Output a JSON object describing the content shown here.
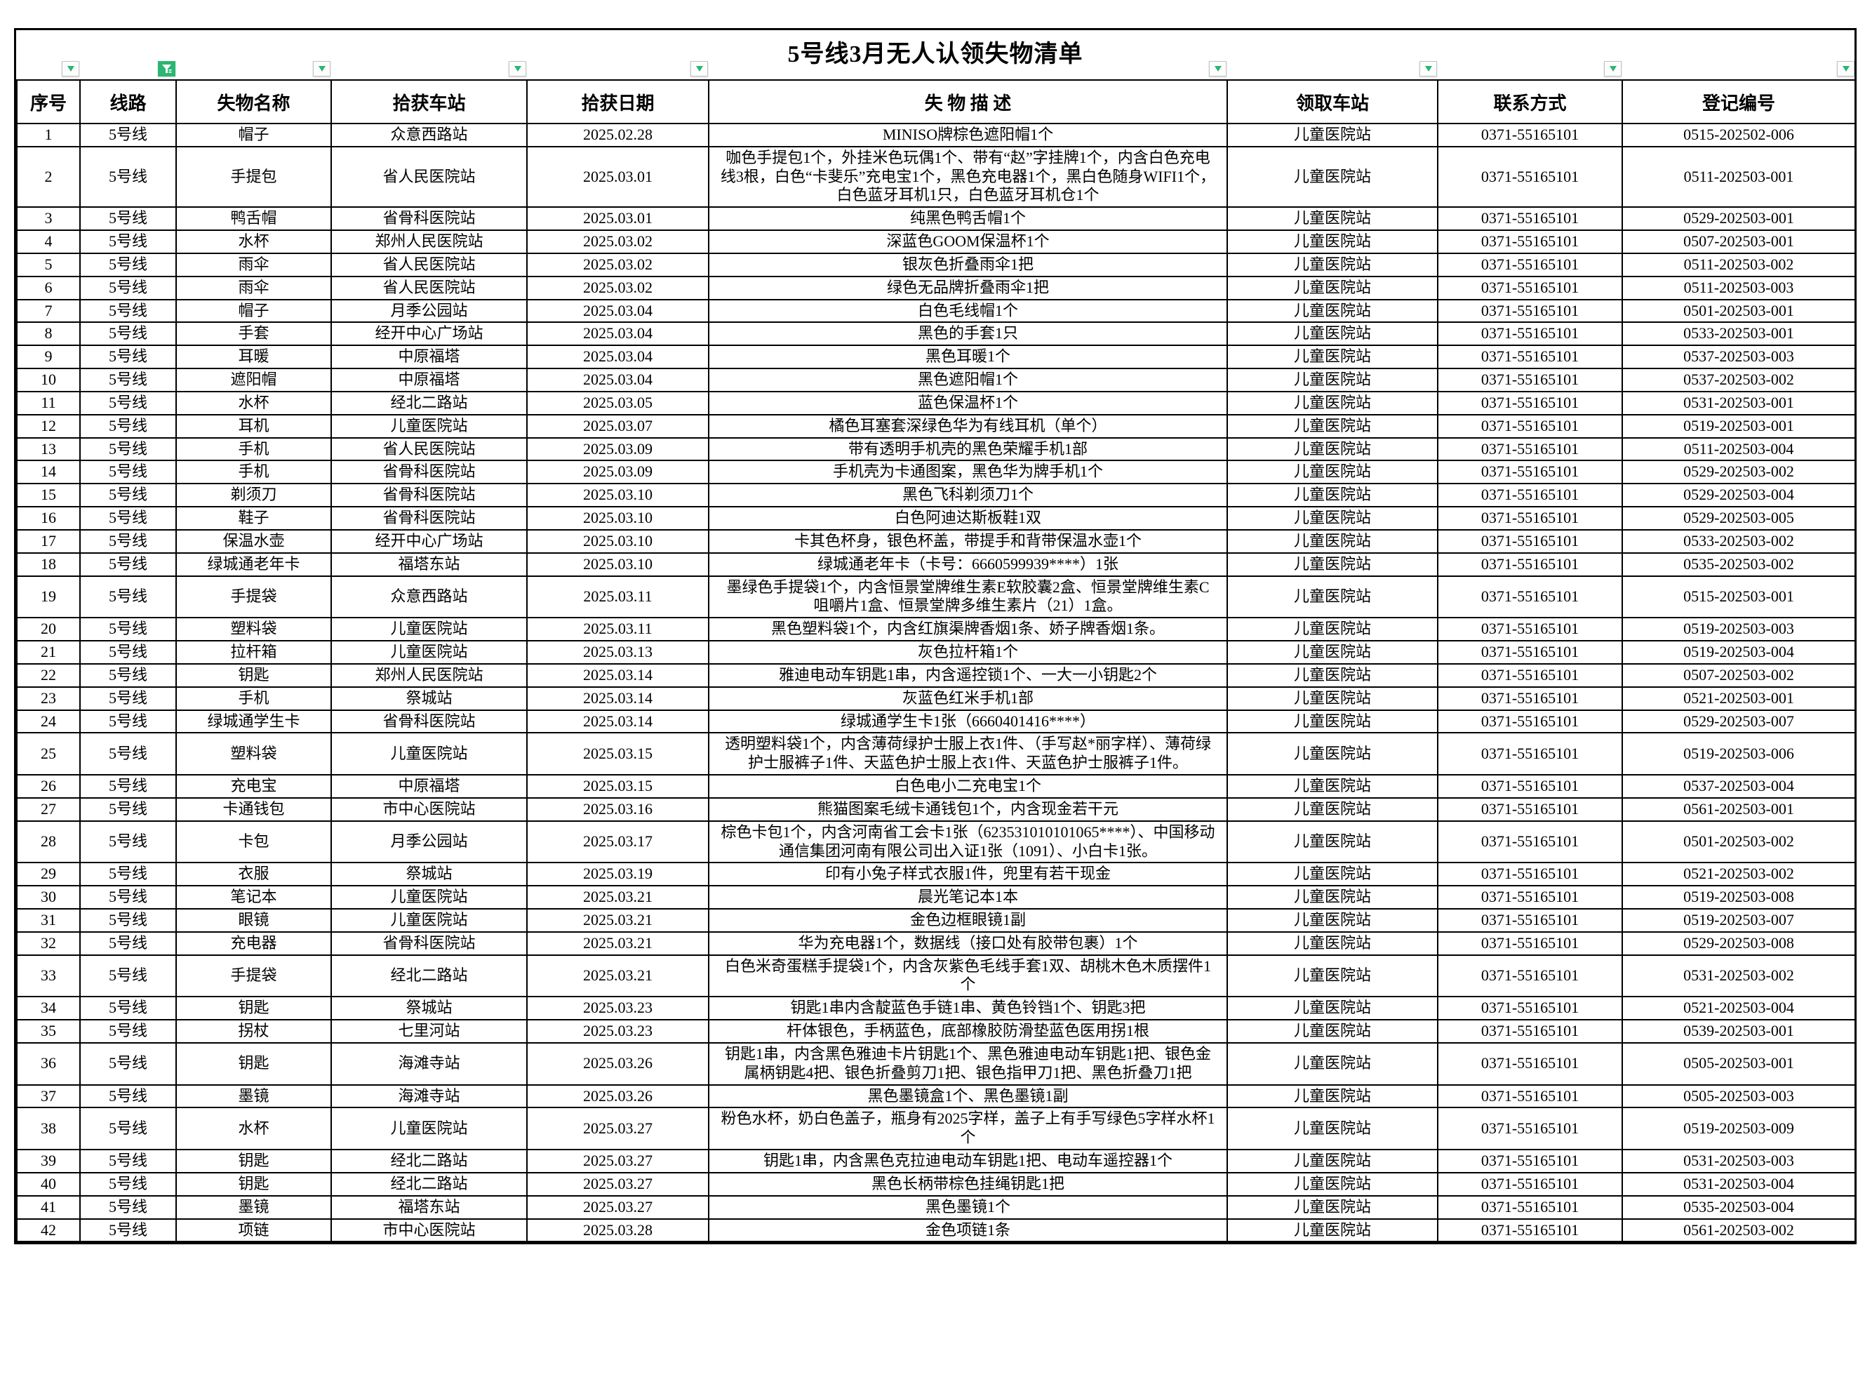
{
  "title": "5号线3月无人认领失物清单",
  "columns": [
    {
      "key": "seq",
      "label": "序号"
    },
    {
      "key": "line",
      "label": "线路"
    },
    {
      "key": "item-name",
      "label": "失物名称"
    },
    {
      "key": "found-station",
      "label": "拾获车站"
    },
    {
      "key": "found-date",
      "label": "拾获日期"
    },
    {
      "key": "description",
      "label": "失 物 描 述"
    },
    {
      "key": "claim-station",
      "label": "领取车站"
    },
    {
      "key": "contact",
      "label": "联系方式"
    },
    {
      "key": "reg-no",
      "label": "登记编号"
    }
  ],
  "filters": {
    "accent_color": "#2bb673",
    "active_column_key": "line",
    "inactive_icon": "filter-dropdown-icon",
    "active_icon": "filter-funnel-icon"
  },
  "rows": [
    [
      "1",
      "5号线",
      "帽子",
      "众意西路站",
      "2025.02.28",
      "MINISO牌棕色遮阳帽1个",
      "儿童医院站",
      "0371-55165101",
      "0515-202502-006"
    ],
    [
      "2",
      "5号线",
      "手提包",
      "省人民医院站",
      "2025.03.01",
      "咖色手提包1个，外挂米色玩偶1个、带有“赵”字挂牌1个，内含白色充电线3根，白色“卡斐乐”充电宝1个，黑色充电器1个，黑白色随身WIFI1个，白色蓝牙耳机1只，白色蓝牙耳机仓1个",
      "儿童医院站",
      "0371-55165101",
      "0511-202503-001"
    ],
    [
      "3",
      "5号线",
      "鸭舌帽",
      "省骨科医院站",
      "2025.03.01",
      "纯黑色鸭舌帽1个",
      "儿童医院站",
      "0371-55165101",
      "0529-202503-001"
    ],
    [
      "4",
      "5号线",
      "水杯",
      "郑州人民医院站",
      "2025.03.02",
      "深蓝色GOOM保温杯1个",
      "儿童医院站",
      "0371-55165101",
      "0507-202503-001"
    ],
    [
      "5",
      "5号线",
      "雨伞",
      "省人民医院站",
      "2025.03.02",
      "银灰色折叠雨伞1把",
      "儿童医院站",
      "0371-55165101",
      "0511-202503-002"
    ],
    [
      "6",
      "5号线",
      "雨伞",
      "省人民医院站",
      "2025.03.02",
      "绿色无品牌折叠雨伞1把",
      "儿童医院站",
      "0371-55165101",
      "0511-202503-003"
    ],
    [
      "7",
      "5号线",
      "帽子",
      "月季公园站",
      "2025.03.04",
      "白色毛线帽1个",
      "儿童医院站",
      "0371-55165101",
      "0501-202503-001"
    ],
    [
      "8",
      "5号线",
      "手套",
      "经开中心广场站",
      "2025.03.04",
      "黑色的手套1只",
      "儿童医院站",
      "0371-55165101",
      "0533-202503-001"
    ],
    [
      "9",
      "5号线",
      "耳暖",
      "中原福塔",
      "2025.03.04",
      "黑色耳暖1个",
      "儿童医院站",
      "0371-55165101",
      "0537-202503-003"
    ],
    [
      "10",
      "5号线",
      "遮阳帽",
      "中原福塔",
      "2025.03.04",
      "黑色遮阳帽1个",
      "儿童医院站",
      "0371-55165101",
      "0537-202503-002"
    ],
    [
      "11",
      "5号线",
      "水杯",
      "经北二路站",
      "2025.03.05",
      "蓝色保温杯1个",
      "儿童医院站",
      "0371-55165101",
      "0531-202503-001"
    ],
    [
      "12",
      "5号线",
      "耳机",
      "儿童医院站",
      "2025.03.07",
      "橘色耳塞套深绿色华为有线耳机（单个）",
      "儿童医院站",
      "0371-55165101",
      "0519-202503-001"
    ],
    [
      "13",
      "5号线",
      "手机",
      "省人民医院站",
      "2025.03.09",
      "带有透明手机壳的黑色荣耀手机1部",
      "儿童医院站",
      "0371-55165101",
      "0511-202503-004"
    ],
    [
      "14",
      "5号线",
      "手机",
      "省骨科医院站",
      "2025.03.09",
      "手机壳为卡通图案，黑色华为牌手机1个",
      "儿童医院站",
      "0371-55165101",
      "0529-202503-002"
    ],
    [
      "15",
      "5号线",
      "剃须刀",
      "省骨科医院站",
      "2025.03.10",
      "黑色飞科剃须刀1个",
      "儿童医院站",
      "0371-55165101",
      "0529-202503-004"
    ],
    [
      "16",
      "5号线",
      "鞋子",
      "省骨科医院站",
      "2025.03.10",
      "白色阿迪达斯板鞋1双",
      "儿童医院站",
      "0371-55165101",
      "0529-202503-005"
    ],
    [
      "17",
      "5号线",
      "保温水壶",
      "经开中心广场站",
      "2025.03.10",
      "卡其色杯身，银色杯盖，带提手和背带保温水壶1个",
      "儿童医院站",
      "0371-55165101",
      "0533-202503-002"
    ],
    [
      "18",
      "5号线",
      "绿城通老年卡",
      "福塔东站",
      "2025.03.10",
      "绿城通老年卡（卡号：6660599939****）1张",
      "儿童医院站",
      "0371-55165101",
      "0535-202503-002"
    ],
    [
      "19",
      "5号线",
      "手提袋",
      "众意西路站",
      "2025.03.11",
      "墨绿色手提袋1个，内含恒景堂牌维生素E软胶囊2盒、恒景堂牌维生素C咀嚼片1盒、恒景堂牌多维生素片（21）1盒。",
      "儿童医院站",
      "0371-55165101",
      "0515-202503-001"
    ],
    [
      "20",
      "5号线",
      "塑料袋",
      "儿童医院站",
      "2025.03.11",
      "黑色塑料袋1个，内含红旗渠牌香烟1条、娇子牌香烟1条。",
      "儿童医院站",
      "0371-55165101",
      "0519-202503-003"
    ],
    [
      "21",
      "5号线",
      "拉杆箱",
      "儿童医院站",
      "2025.03.13",
      "灰色拉杆箱1个",
      "儿童医院站",
      "0371-55165101",
      "0519-202503-004"
    ],
    [
      "22",
      "5号线",
      "钥匙",
      "郑州人民医院站",
      "2025.03.14",
      "雅迪电动车钥匙1串，内含遥控锁1个、一大一小钥匙2个",
      "儿童医院站",
      "0371-55165101",
      "0507-202503-002"
    ],
    [
      "23",
      "5号线",
      "手机",
      "祭城站",
      "2025.03.14",
      "灰蓝色红米手机1部",
      "儿童医院站",
      "0371-55165101",
      "0521-202503-001"
    ],
    [
      "24",
      "5号线",
      "绿城通学生卡",
      "省骨科医院站",
      "2025.03.14",
      "绿城通学生卡1张（6660401416****）",
      "儿童医院站",
      "0371-55165101",
      "0529-202503-007"
    ],
    [
      "25",
      "5号线",
      "塑料袋",
      "儿童医院站",
      "2025.03.15",
      "透明塑料袋1个，内含薄荷绿护士服上衣1件、（手写赵*丽字样）、薄荷绿护士服裤子1件、天蓝色护士服上衣1件、天蓝色护士服裤子1件。",
      "儿童医院站",
      "0371-55165101",
      "0519-202503-006"
    ],
    [
      "26",
      "5号线",
      "充电宝",
      "中原福塔",
      "2025.03.15",
      "白色电小二充电宝1个",
      "儿童医院站",
      "0371-55165101",
      "0537-202503-004"
    ],
    [
      "27",
      "5号线",
      "卡通钱包",
      "市中心医院站",
      "2025.03.16",
      "熊猫图案毛绒卡通钱包1个，内含现金若干元",
      "儿童医院站",
      "0371-55165101",
      "0561-202503-001"
    ],
    [
      "28",
      "5号线",
      "卡包",
      "月季公园站",
      "2025.03.17",
      "棕色卡包1个，内含河南省工会卡1张（623531010101065****）、中国移动通信集团河南有限公司出入证1张（1091）、小白卡1张。",
      "儿童医院站",
      "0371-55165101",
      "0501-202503-002"
    ],
    [
      "29",
      "5号线",
      "衣服",
      "祭城站",
      "2025.03.19",
      "印有小兔子样式衣服1件，兜里有若干现金",
      "儿童医院站",
      "0371-55165101",
      "0521-202503-002"
    ],
    [
      "30",
      "5号线",
      "笔记本",
      "儿童医院站",
      "2025.03.21",
      "晨光笔记本1本",
      "儿童医院站",
      "0371-55165101",
      "0519-202503-008"
    ],
    [
      "31",
      "5号线",
      "眼镜",
      "儿童医院站",
      "2025.03.21",
      "金色边框眼镜1副",
      "儿童医院站",
      "0371-55165101",
      "0519-202503-007"
    ],
    [
      "32",
      "5号线",
      "充电器",
      "省骨科医院站",
      "2025.03.21",
      "华为充电器1个，数据线（接口处有胶带包裹）1个",
      "儿童医院站",
      "0371-55165101",
      "0529-202503-008"
    ],
    [
      "33",
      "5号线",
      "手提袋",
      "经北二路站",
      "2025.03.21",
      "白色米奇蛋糕手提袋1个，内含灰紫色毛线手套1双、胡桃木色木质摆件1个",
      "儿童医院站",
      "0371-55165101",
      "0531-202503-002"
    ],
    [
      "34",
      "5号线",
      "钥匙",
      "祭城站",
      "2025.03.23",
      "钥匙1串内含靛蓝色手链1串、黄色铃铛1个、钥匙3把",
      "儿童医院站",
      "0371-55165101",
      "0521-202503-004"
    ],
    [
      "35",
      "5号线",
      "拐杖",
      "七里河站",
      "2025.03.23",
      "杆体银色，手柄蓝色，底部橡胶防滑垫蓝色医用拐1根",
      "儿童医院站",
      "0371-55165101",
      "0539-202503-001"
    ],
    [
      "36",
      "5号线",
      "钥匙",
      "海滩寺站",
      "2025.03.26",
      "钥匙1串，内含黑色雅迪卡片钥匙1个、黑色雅迪电动车钥匙1把、银色金属柄钥匙4把、银色折叠剪刀1把、银色指甲刀1把、黑色折叠刀1把",
      "儿童医院站",
      "0371-55165101",
      "0505-202503-001"
    ],
    [
      "37",
      "5号线",
      "墨镜",
      "海滩寺站",
      "2025.03.26",
      "黑色墨镜盒1个、黑色墨镜1副",
      "儿童医院站",
      "0371-55165101",
      "0505-202503-003"
    ],
    [
      "38",
      "5号线",
      "水杯",
      "儿童医院站",
      "2025.03.27",
      "粉色水杯，奶白色盖子，瓶身有2025字样，盖子上有手写绿色5字样水杯1个",
      "儿童医院站",
      "0371-55165101",
      "0519-202503-009"
    ],
    [
      "39",
      "5号线",
      "钥匙",
      "经北二路站",
      "2025.03.27",
      "钥匙1串，内含黑色克拉迪电动车钥匙1把、电动车遥控器1个",
      "儿童医院站",
      "0371-55165101",
      "0531-202503-003"
    ],
    [
      "40",
      "5号线",
      "钥匙",
      "经北二路站",
      "2025.03.27",
      "黑色长柄带棕色挂绳钥匙1把",
      "儿童医院站",
      "0371-55165101",
      "0531-202503-004"
    ],
    [
      "41",
      "5号线",
      "墨镜",
      "福塔东站",
      "2025.03.27",
      "黑色墨镜1个",
      "儿童医院站",
      "0371-55165101",
      "0535-202503-004"
    ],
    [
      "42",
      "5号线",
      "项链",
      "市中心医院站",
      "2025.03.28",
      "金色项链1条",
      "儿童医院站",
      "0371-55165101",
      "0561-202503-002"
    ]
  ]
}
